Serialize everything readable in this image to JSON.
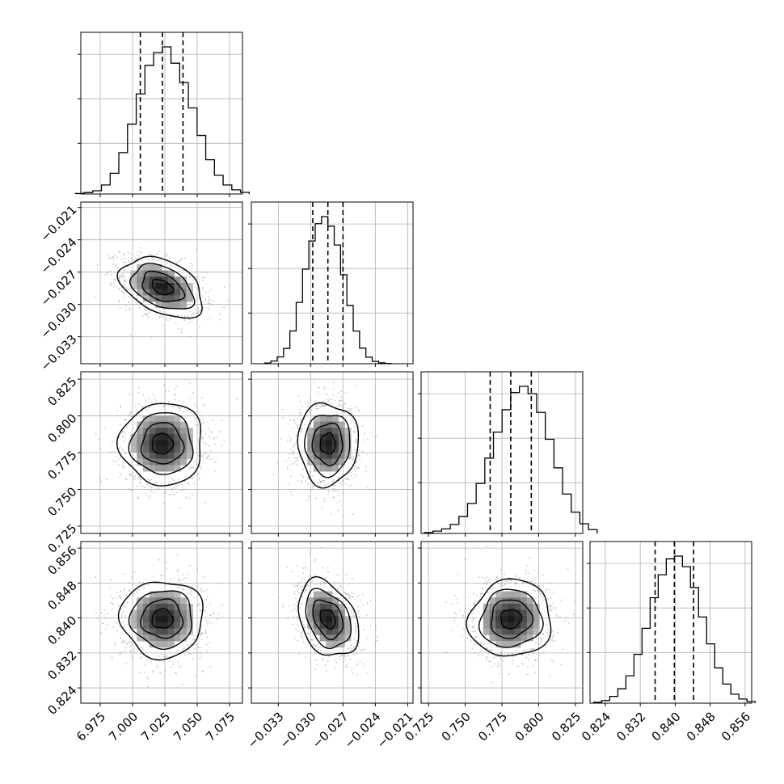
{
  "chart_data": {
    "type": "corner",
    "parameters": [
      {
        "range": [
          6.96,
          7.085
        ],
        "ticks": [
          "6.975",
          "7.000",
          "7.025",
          "7.050",
          "7.075"
        ],
        "tick_values": [
          6.975,
          7.0,
          7.025,
          7.05,
          7.075
        ],
        "quantiles": [
          7.006,
          7.023,
          7.039
        ],
        "median": 7.023,
        "sigma": 0.016
      },
      {
        "range": [
          -0.0355,
          -0.0205
        ],
        "ticks": [
          "−0.033",
          "−0.030",
          "−0.027",
          "−0.024",
          "−0.021"
        ],
        "tick_values": [
          -0.033,
          -0.03,
          -0.027,
          -0.024,
          -0.021
        ],
        "quantiles": [
          -0.0298,
          -0.0284,
          -0.027
        ],
        "median": -0.0284,
        "sigma": 0.0014
      },
      {
        "range": [
          0.72,
          0.83
        ],
        "ticks": [
          "0.725",
          "0.750",
          "0.775",
          "0.800",
          "0.825"
        ],
        "tick_values": [
          0.725,
          0.75,
          0.775,
          0.8,
          0.825
        ],
        "quantiles": [
          0.767,
          0.781,
          0.795
        ],
        "median": 0.781,
        "sigma": 0.014
      },
      {
        "range": [
          0.8205,
          0.8575
        ],
        "ticks": [
          "0.824",
          "0.832",
          "0.840",
          "0.848",
          "0.856"
        ],
        "tick_values": [
          0.824,
          0.832,
          0.84,
          0.848,
          0.856
        ],
        "quantiles": [
          0.8354,
          0.8398,
          0.8442
        ],
        "median": 0.8398,
        "sigma": 0.0044
      }
    ],
    "histograms": [
      [
        0.003,
        0.01,
        0.022,
        0.061,
        0.141,
        0.281,
        0.475,
        0.68,
        0.874,
        0.961,
        1.0,
        0.889,
        0.757,
        0.585,
        0.398,
        0.233,
        0.127,
        0.061,
        0.028,
        0.011
      ],
      [
        0.005,
        0.018,
        0.046,
        0.104,
        0.223,
        0.417,
        0.643,
        0.834,
        0.952,
        1.0,
        0.935,
        0.807,
        0.605,
        0.396,
        0.222,
        0.106,
        0.044,
        0.016,
        0.006,
        0.002
      ],
      [
        0.006,
        0.016,
        0.031,
        0.061,
        0.115,
        0.204,
        0.34,
        0.512,
        0.689,
        0.841,
        0.958,
        1.0,
        0.95,
        0.823,
        0.64,
        0.446,
        0.268,
        0.145,
        0.066,
        0.026
      ],
      [
        0.006,
        0.018,
        0.046,
        0.098,
        0.186,
        0.332,
        0.509,
        0.717,
        0.873,
        0.981,
        1.0,
        0.928,
        0.786,
        0.586,
        0.403,
        0.24,
        0.13,
        0.061,
        0.028,
        0.011
      ]
    ],
    "correlations": {
      "1-0": -0.4,
      "2-0": 0.0,
      "2-1": 0.0,
      "3-0": 0.0,
      "3-1": -0.32,
      "3-2": 0.05
    },
    "contour_levels_sigma": [
      0.5,
      1.0,
      1.5,
      2.0
    ],
    "grid": true,
    "colors": {
      "line": "#000000",
      "grid": "#b0b0b0",
      "scatter": "#9a9a9a",
      "density_dark": "#000000"
    }
  }
}
